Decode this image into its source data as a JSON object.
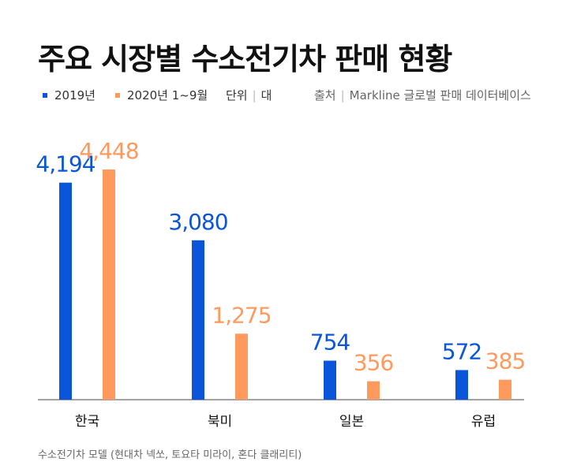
{
  "title": "주요 시장별 수소전기차 판매 현황",
  "legend": [
    {
      "label": "2019년",
      "color": "#0a55d9"
    },
    {
      "label": "2020년 1~9월",
      "color": "#ff9a5e"
    }
  ],
  "unit": {
    "label": "단위",
    "value": "대"
  },
  "source": {
    "label": "출처",
    "value": "Markline 글로벌 판매 데이터베이스"
  },
  "note": "수소전기차 모델 (현대차 넥쏘, 토요타 미라이, 혼다 클래리티)",
  "chart_data": {
    "type": "bar",
    "categories": [
      "한국",
      "북미",
      "일본",
      "유럽"
    ],
    "series": [
      {
        "name": "2019년",
        "values": [
          4194,
          3080,
          754,
          572
        ],
        "labels": [
          "4,194",
          "3,080",
          "754",
          "572"
        ],
        "color": "#0a55d9"
      },
      {
        "name": "2020년 1~9월",
        "values": [
          4448,
          1275,
          356,
          385
        ],
        "labels": [
          "4,448",
          "1,275",
          "356",
          "385"
        ],
        "color": "#ff9a5e"
      }
    ],
    "ylim": [
      0,
      4800
    ],
    "grid": false,
    "legend_position": "top-left"
  }
}
